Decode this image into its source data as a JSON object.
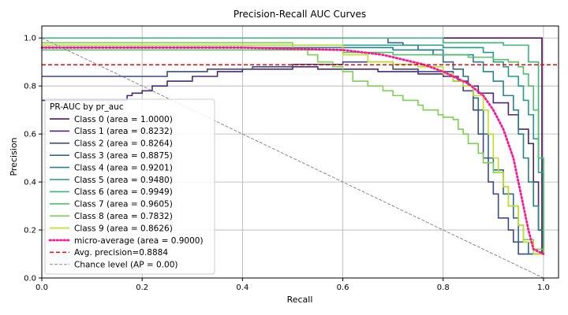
{
  "chart_data": {
    "type": "line",
    "title": "Precision-Recall AUC Curves",
    "xlabel": "Recall",
    "ylabel": "Precision",
    "xlim": [
      0,
      1.03
    ],
    "ylim": [
      0,
      1.05
    ],
    "xticks": [
      "0.0",
      "0.2",
      "0.4",
      "0.6",
      "0.8",
      "1.0"
    ],
    "yticks": [
      "0.0",
      "0.2",
      "0.4",
      "0.6",
      "0.8",
      "1.0"
    ],
    "grid": true,
    "legend": {
      "title": "PR-AUC by pr_auc",
      "position": "lower-left"
    },
    "series": [
      {
        "name": "Class 0 (area = 1.0000)",
        "color": "#440154",
        "style": "step",
        "points": [
          [
            0,
            1.0
          ],
          [
            0.997,
            1.0
          ],
          [
            0.997,
            0.1
          ],
          [
            1.0,
            0.1
          ]
        ]
      },
      {
        "name": "Class 1 (area = 0.8232)",
        "color": "#482878",
        "style": "step",
        "points": [
          [
            0,
            0.74
          ],
          [
            0.16,
            0.74
          ],
          [
            0.17,
            0.76
          ],
          [
            0.18,
            0.77
          ],
          [
            0.2,
            0.78
          ],
          [
            0.22,
            0.8
          ],
          [
            0.25,
            0.82
          ],
          [
            0.3,
            0.84
          ],
          [
            0.35,
            0.86
          ],
          [
            0.4,
            0.87
          ],
          [
            0.5,
            0.88
          ],
          [
            0.55,
            0.87
          ],
          [
            0.6,
            0.87
          ],
          [
            0.67,
            0.86
          ],
          [
            0.75,
            0.85
          ],
          [
            0.8,
            0.84
          ],
          [
            0.83,
            0.82
          ],
          [
            0.85,
            0.8
          ],
          [
            0.87,
            0.77
          ],
          [
            0.9,
            0.73
          ],
          [
            0.93,
            0.68
          ],
          [
            0.95,
            0.62
          ],
          [
            0.97,
            0.56
          ],
          [
            0.98,
            0.4
          ],
          [
            0.99,
            0.2
          ],
          [
            1.0,
            0.1
          ]
        ]
      },
      {
        "name": "Class 2 (area = 0.8264)",
        "color": "#3e4989",
        "style": "step",
        "points": [
          [
            0,
            0.84
          ],
          [
            0.2,
            0.84
          ],
          [
            0.25,
            0.86
          ],
          [
            0.33,
            0.87
          ],
          [
            0.42,
            0.88
          ],
          [
            0.5,
            0.89
          ],
          [
            0.6,
            0.9
          ],
          [
            0.7,
            0.87
          ],
          [
            0.75,
            0.86
          ],
          [
            0.8,
            0.86
          ],
          [
            0.82,
            0.82
          ],
          [
            0.84,
            0.78
          ],
          [
            0.86,
            0.7
          ],
          [
            0.87,
            0.6
          ],
          [
            0.88,
            0.5
          ],
          [
            0.89,
            0.4
          ],
          [
            0.9,
            0.35
          ],
          [
            0.91,
            0.25
          ],
          [
            0.93,
            0.2
          ],
          [
            0.94,
            0.15
          ],
          [
            0.95,
            0.1
          ],
          [
            1.0,
            0.1
          ]
        ]
      },
      {
        "name": "Class 3 (area = 0.8875)",
        "color": "#31688e",
        "style": "step",
        "points": [
          [
            0,
            1.0
          ],
          [
            0.67,
            1.0
          ],
          [
            0.69,
            0.98
          ],
          [
            0.72,
            0.97
          ],
          [
            0.75,
            0.95
          ],
          [
            0.78,
            0.93
          ],
          [
            0.8,
            0.9
          ],
          [
            0.82,
            0.87
          ],
          [
            0.84,
            0.84
          ],
          [
            0.85,
            0.8
          ],
          [
            0.86,
            0.75
          ],
          [
            0.87,
            0.7
          ],
          [
            0.88,
            0.6
          ],
          [
            0.89,
            0.5
          ],
          [
            0.9,
            0.45
          ],
          [
            0.92,
            0.35
          ],
          [
            0.94,
            0.25
          ],
          [
            0.95,
            0.15
          ],
          [
            0.97,
            0.1
          ],
          [
            1.0,
            0.1
          ]
        ]
      },
      {
        "name": "Class 4 (area = 0.9201)",
        "color": "#26828e",
        "style": "step",
        "points": [
          [
            0,
            0.96
          ],
          [
            0.6,
            0.96
          ],
          [
            0.7,
            0.95
          ],
          [
            0.8,
            0.93
          ],
          [
            0.86,
            0.9
          ],
          [
            0.88,
            0.86
          ],
          [
            0.9,
            0.82
          ],
          [
            0.92,
            0.76
          ],
          [
            0.94,
            0.7
          ],
          [
            0.95,
            0.6
          ],
          [
            0.96,
            0.5
          ],
          [
            0.97,
            0.4
          ],
          [
            0.98,
            0.3
          ],
          [
            0.99,
            0.2
          ],
          [
            1.0,
            0.1
          ]
        ]
      },
      {
        "name": "Class 5 (area = 0.9480)",
        "color": "#1f9e89",
        "style": "step",
        "points": [
          [
            0,
            0.97
          ],
          [
            0.7,
            0.97
          ],
          [
            0.8,
            0.96
          ],
          [
            0.88,
            0.94
          ],
          [
            0.9,
            0.9
          ],
          [
            0.92,
            0.88
          ],
          [
            0.93,
            0.84
          ],
          [
            0.95,
            0.8
          ],
          [
            0.96,
            0.74
          ],
          [
            0.97,
            0.68
          ],
          [
            0.98,
            0.58
          ],
          [
            0.99,
            0.44
          ],
          [
            1.0,
            0.1
          ]
        ]
      },
      {
        "name": "Class 6 (area = 0.9949)",
        "color": "#35b779",
        "style": "step",
        "points": [
          [
            0,
            1.0
          ],
          [
            0.8,
            1.0
          ],
          [
            0.8,
            0.98
          ],
          [
            0.9,
            0.98
          ],
          [
            0.92,
            0.97
          ],
          [
            0.96,
            0.97
          ],
          [
            0.97,
            0.9
          ],
          [
            0.99,
            0.9
          ],
          [
            0.99,
            0.5
          ],
          [
            1.0,
            0.5
          ],
          [
            1.0,
            0.1
          ]
        ]
      },
      {
        "name": "Class 7 (area = 0.9605)",
        "color": "#4fc16b",
        "style": "step",
        "points": [
          [
            0,
            0.95
          ],
          [
            0.5,
            0.95
          ],
          [
            0.6,
            0.94
          ],
          [
            0.7,
            0.93
          ],
          [
            0.8,
            0.93
          ],
          [
            0.85,
            0.92
          ],
          [
            0.9,
            0.91
          ],
          [
            0.93,
            0.9
          ],
          [
            0.95,
            0.88
          ],
          [
            0.96,
            0.85
          ],
          [
            0.97,
            0.8
          ],
          [
            0.98,
            0.7
          ],
          [
            0.99,
            0.5
          ],
          [
            1.0,
            0.3
          ],
          [
            1.0,
            0.1
          ]
        ]
      },
      {
        "name": "Class 8 (area = 0.7832)",
        "color": "#7ad151",
        "style": "step",
        "points": [
          [
            0,
            0.98
          ],
          [
            0.5,
            0.98
          ],
          [
            0.5,
            0.95
          ],
          [
            0.53,
            0.93
          ],
          [
            0.55,
            0.9
          ],
          [
            0.58,
            0.88
          ],
          [
            0.6,
            0.86
          ],
          [
            0.62,
            0.82
          ],
          [
            0.65,
            0.8
          ],
          [
            0.68,
            0.78
          ],
          [
            0.7,
            0.76
          ],
          [
            0.72,
            0.74
          ],
          [
            0.75,
            0.72
          ],
          [
            0.76,
            0.7
          ],
          [
            0.79,
            0.68
          ],
          [
            0.8,
            0.67
          ],
          [
            0.82,
            0.66
          ],
          [
            0.83,
            0.62
          ],
          [
            0.84,
            0.6
          ],
          [
            0.85,
            0.56
          ],
          [
            0.87,
            0.52
          ],
          [
            0.88,
            0.48
          ],
          [
            0.9,
            0.44
          ],
          [
            0.92,
            0.38
          ],
          [
            0.93,
            0.3
          ],
          [
            0.95,
            0.22
          ],
          [
            0.96,
            0.16
          ],
          [
            0.98,
            0.12
          ],
          [
            1.0,
            0.1
          ]
        ]
      },
      {
        "name": "Class 9 (area = 0.8626)",
        "color": "#bddf26",
        "style": "step",
        "points": [
          [
            0,
            0.97
          ],
          [
            0.55,
            0.97
          ],
          [
            0.6,
            0.93
          ],
          [
            0.65,
            0.9
          ],
          [
            0.7,
            0.89
          ],
          [
            0.75,
            0.88
          ],
          [
            0.8,
            0.85
          ],
          [
            0.82,
            0.82
          ],
          [
            0.84,
            0.8
          ],
          [
            0.86,
            0.76
          ],
          [
            0.88,
            0.7
          ],
          [
            0.89,
            0.6
          ],
          [
            0.9,
            0.5
          ],
          [
            0.91,
            0.44
          ],
          [
            0.92,
            0.38
          ],
          [
            0.93,
            0.3
          ],
          [
            0.95,
            0.22
          ],
          [
            0.96,
            0.15
          ],
          [
            0.98,
            0.1
          ],
          [
            1.0,
            0.1
          ]
        ]
      },
      {
        "name": "micro-average (area = 0.9000)",
        "color": "#ff1493",
        "style": "dotted",
        "points": [
          [
            0,
            0.96
          ],
          [
            0.4,
            0.96
          ],
          [
            0.6,
            0.95
          ],
          [
            0.68,
            0.93
          ],
          [
            0.72,
            0.91
          ],
          [
            0.76,
            0.89
          ],
          [
            0.8,
            0.86
          ],
          [
            0.82,
            0.84
          ],
          [
            0.85,
            0.81
          ],
          [
            0.88,
            0.76
          ],
          [
            0.9,
            0.7
          ],
          [
            0.92,
            0.62
          ],
          [
            0.94,
            0.5
          ],
          [
            0.95,
            0.4
          ],
          [
            0.96,
            0.3
          ],
          [
            0.97,
            0.2
          ],
          [
            0.98,
            0.12
          ],
          [
            1.0,
            0.1
          ]
        ]
      },
      {
        "name": "Avg. precision=0.8884",
        "color": "#ff0000",
        "style": "dashed",
        "points": [
          [
            0,
            0.8884
          ],
          [
            1.03,
            0.8884
          ]
        ]
      },
      {
        "name": "Chance level (AP = 0.00)",
        "color": "#888888",
        "style": "thin-dashed",
        "points": [
          [
            0,
            1.0
          ],
          [
            1.0,
            0.0
          ]
        ]
      }
    ]
  }
}
